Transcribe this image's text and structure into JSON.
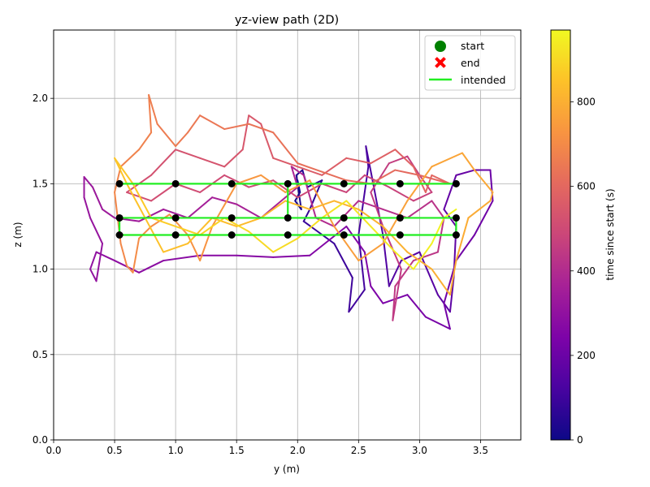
{
  "chart_data": {
    "type": "line",
    "title": "yz-view path (2D)",
    "xlabel": "y (m)",
    "ylabel": "z (m)",
    "xlim": [
      0.0,
      3.83
    ],
    "ylim": [
      0.0,
      2.4
    ],
    "xticks": [
      0.0,
      0.5,
      1.0,
      1.5,
      2.0,
      2.5,
      3.0,
      3.5
    ],
    "yticks": [
      0.0,
      0.5,
      1.0,
      1.5,
      2.0
    ],
    "xtick_labels": [
      "0.0",
      "0.5",
      "1.0",
      "1.5",
      "2.0",
      "2.5",
      "3.0",
      "3.5"
    ],
    "ytick_labels": [
      "0.0",
      "0.5",
      "1.0",
      "1.5",
      "2.0"
    ],
    "grid": true,
    "legend": {
      "placement": "top-right",
      "entries": [
        {
          "label": "start",
          "marker": "circle",
          "color": "#008000"
        },
        {
          "label": "end",
          "marker": "x",
          "color": "#ff0000"
        },
        {
          "label": "intended",
          "marker": "line",
          "color": "#22ee22"
        }
      ]
    },
    "colorbar": {
      "label": "time since start (s)",
      "min": 0,
      "max": 970,
      "ticks": [
        0,
        200,
        400,
        600,
        800
      ],
      "tick_labels": [
        "0",
        "200",
        "400",
        "600",
        "800"
      ],
      "colormap": "plasma"
    },
    "intended_path": {
      "color": "#22ee22",
      "waypoints": [
        {
          "y": 0.54,
          "z": 1.5
        },
        {
          "y": 1.0,
          "z": 1.5
        },
        {
          "y": 1.46,
          "z": 1.5
        },
        {
          "y": 1.92,
          "z": 1.5
        },
        {
          "y": 1.92,
          "z": 1.3
        },
        {
          "y": 1.46,
          "z": 1.3
        },
        {
          "y": 1.0,
          "z": 1.3
        },
        {
          "y": 0.54,
          "z": 1.3
        },
        {
          "y": 0.54,
          "z": 1.2
        },
        {
          "y": 1.0,
          "z": 1.2
        },
        {
          "y": 1.46,
          "z": 1.2
        },
        {
          "y": 1.92,
          "z": 1.2
        },
        {
          "y": 2.38,
          "z": 1.2
        },
        {
          "y": 2.84,
          "z": 1.2
        },
        {
          "y": 3.3,
          "z": 1.2
        },
        {
          "y": 3.3,
          "z": 1.3
        },
        {
          "y": 2.84,
          "z": 1.3
        },
        {
          "y": 2.38,
          "z": 1.3
        },
        {
          "y": 1.92,
          "z": 1.3
        },
        {
          "y": 1.92,
          "z": 1.5
        },
        {
          "y": 2.38,
          "z": 1.5
        },
        {
          "y": 2.84,
          "z": 1.5
        },
        {
          "y": 3.3,
          "z": 1.5
        }
      ]
    },
    "waypoint_markers": {
      "color": "#000000",
      "points": [
        {
          "y": 0.54,
          "z": 1.5
        },
        {
          "y": 1.0,
          "z": 1.5
        },
        {
          "y": 1.46,
          "z": 1.5
        },
        {
          "y": 1.92,
          "z": 1.5
        },
        {
          "y": 2.38,
          "z": 1.5
        },
        {
          "y": 2.84,
          "z": 1.5
        },
        {
          "y": 3.3,
          "z": 1.5
        },
        {
          "y": 0.54,
          "z": 1.3
        },
        {
          "y": 1.0,
          "z": 1.3
        },
        {
          "y": 1.46,
          "z": 1.3
        },
        {
          "y": 1.92,
          "z": 1.3
        },
        {
          "y": 2.38,
          "z": 1.3
        },
        {
          "y": 2.84,
          "z": 1.3
        },
        {
          "y": 3.3,
          "z": 1.3
        },
        {
          "y": 0.54,
          "z": 1.2
        },
        {
          "y": 1.0,
          "z": 1.2
        },
        {
          "y": 1.46,
          "z": 1.2
        },
        {
          "y": 1.92,
          "z": 1.2
        },
        {
          "y": 2.38,
          "z": 1.2
        },
        {
          "y": 2.84,
          "z": 1.2
        },
        {
          "y": 3.3,
          "z": 1.2
        }
      ]
    },
    "actual_path_segments": [
      {
        "t_start": 0,
        "t_end": 90,
        "points": [
          [
            2.0,
            1.52
          ],
          [
            2.02,
            1.45
          ],
          [
            1.98,
            1.4
          ],
          [
            2.03,
            1.35
          ],
          [
            1.99,
            1.55
          ],
          [
            2.04,
            1.58
          ],
          [
            2.08,
            1.48
          ],
          [
            2.2,
            1.52
          ],
          [
            2.1,
            1.35
          ],
          [
            2.05,
            1.28
          ]
        ]
      },
      {
        "t_start": 90,
        "t_end": 180,
        "points": [
          [
            2.05,
            1.28
          ],
          [
            2.3,
            1.15
          ],
          [
            2.45,
            0.95
          ],
          [
            2.42,
            0.75
          ],
          [
            2.55,
            0.88
          ],
          [
            2.5,
            1.2
          ],
          [
            2.58,
            1.6
          ],
          [
            2.56,
            1.72
          ],
          [
            2.62,
            1.5
          ],
          [
            2.7,
            1.2
          ],
          [
            2.75,
            0.9
          ],
          [
            2.85,
            1.05
          ],
          [
            3.0,
            1.1
          ],
          [
            3.15,
            0.85
          ],
          [
            3.25,
            0.75
          ],
          [
            3.28,
            0.95
          ],
          [
            3.3,
            1.25
          ]
        ]
      },
      {
        "t_start": 180,
        "t_end": 260,
        "points": [
          [
            3.3,
            1.25
          ],
          [
            3.2,
            1.35
          ],
          [
            3.3,
            1.55
          ],
          [
            3.45,
            1.58
          ],
          [
            3.58,
            1.58
          ],
          [
            3.6,
            1.4
          ],
          [
            3.45,
            1.2
          ],
          [
            3.3,
            1.05
          ],
          [
            3.2,
            0.8
          ],
          [
            3.25,
            0.65
          ],
          [
            3.05,
            0.72
          ],
          [
            2.9,
            0.85
          ],
          [
            2.7,
            0.8
          ],
          [
            2.6,
            0.9
          ],
          [
            2.55,
            1.1
          ],
          [
            2.4,
            1.25
          ]
        ]
      },
      {
        "t_start": 260,
        "t_end": 340,
        "points": [
          [
            2.4,
            1.25
          ],
          [
            2.1,
            1.08
          ],
          [
            1.8,
            1.07
          ],
          [
            1.5,
            1.08
          ],
          [
            1.2,
            1.08
          ],
          [
            0.9,
            1.05
          ],
          [
            0.7,
            0.98
          ],
          [
            0.5,
            1.05
          ],
          [
            0.35,
            1.1
          ],
          [
            0.3,
            1.0
          ],
          [
            0.35,
            0.93
          ],
          [
            0.4,
            1.15
          ],
          [
            0.3,
            1.3
          ],
          [
            0.25,
            1.42
          ],
          [
            0.25,
            1.54
          ],
          [
            0.32,
            1.48
          ],
          [
            0.4,
            1.35
          ],
          [
            0.5,
            1.3
          ]
        ]
      },
      {
        "t_start": 340,
        "t_end": 430,
        "points": [
          [
            0.5,
            1.3
          ],
          [
            0.7,
            1.28
          ],
          [
            0.9,
            1.35
          ],
          [
            1.1,
            1.3
          ],
          [
            1.3,
            1.42
          ],
          [
            1.5,
            1.38
          ],
          [
            1.7,
            1.3
          ],
          [
            1.9,
            1.42
          ],
          [
            2.0,
            1.48
          ],
          [
            1.95,
            1.6
          ],
          [
            2.05,
            1.55
          ],
          [
            2.15,
            1.3
          ],
          [
            2.3,
            1.25
          ],
          [
            2.5,
            1.4
          ],
          [
            2.7,
            1.35
          ],
          [
            2.9,
            1.3
          ],
          [
            3.1,
            1.4
          ],
          [
            3.2,
            1.3
          ]
        ]
      },
      {
        "t_start": 430,
        "t_end": 520,
        "points": [
          [
            3.2,
            1.3
          ],
          [
            3.15,
            1.1
          ],
          [
            2.95,
            1.05
          ],
          [
            2.8,
            0.9
          ],
          [
            2.78,
            0.7
          ],
          [
            2.85,
            1.0
          ],
          [
            2.7,
            1.25
          ],
          [
            2.6,
            1.45
          ],
          [
            2.75,
            1.62
          ],
          [
            2.9,
            1.66
          ],
          [
            3.0,
            1.55
          ],
          [
            3.1,
            1.45
          ],
          [
            2.95,
            1.4
          ],
          [
            2.75,
            1.48
          ],
          [
            2.55,
            1.55
          ],
          [
            2.4,
            1.45
          ],
          [
            2.2,
            1.5
          ],
          [
            2.0,
            1.42
          ],
          [
            1.8,
            1.52
          ],
          [
            1.6,
            1.48
          ],
          [
            1.4,
            1.55
          ],
          [
            1.2,
            1.45
          ],
          [
            1.0,
            1.5
          ],
          [
            0.8,
            1.4
          ],
          [
            0.6,
            1.45
          ]
        ]
      },
      {
        "t_start": 520,
        "t_end": 600,
        "points": [
          [
            0.6,
            1.45
          ],
          [
            0.8,
            1.55
          ],
          [
            1.0,
            1.7
          ],
          [
            1.2,
            1.65
          ],
          [
            1.4,
            1.6
          ],
          [
            1.55,
            1.7
          ],
          [
            1.6,
            1.9
          ],
          [
            1.7,
            1.85
          ],
          [
            1.8,
            1.65
          ],
          [
            2.0,
            1.6
          ],
          [
            2.2,
            1.55
          ],
          [
            2.4,
            1.65
          ],
          [
            2.6,
            1.62
          ],
          [
            2.8,
            1.7
          ],
          [
            2.95,
            1.6
          ],
          [
            3.05,
            1.45
          ],
          [
            3.1,
            1.55
          ],
          [
            3.25,
            1.5
          ]
        ]
      },
      {
        "t_start": 600,
        "t_end": 690,
        "points": [
          [
            3.25,
            1.5
          ],
          [
            3.0,
            1.55
          ],
          [
            2.8,
            1.58
          ],
          [
            2.6,
            1.5
          ],
          [
            2.4,
            1.52
          ],
          [
            2.2,
            1.57
          ],
          [
            2.0,
            1.62
          ],
          [
            1.8,
            1.8
          ],
          [
            1.6,
            1.85
          ],
          [
            1.4,
            1.82
          ],
          [
            1.2,
            1.9
          ],
          [
            1.1,
            1.8
          ],
          [
            1.0,
            1.72
          ],
          [
            0.85,
            1.85
          ],
          [
            0.78,
            2.02
          ],
          [
            0.8,
            1.8
          ],
          [
            0.7,
            1.7
          ],
          [
            0.55,
            1.6
          ],
          [
            0.5,
            1.45
          ]
        ]
      },
      {
        "t_start": 690,
        "t_end": 780,
        "points": [
          [
            0.5,
            1.45
          ],
          [
            0.55,
            1.15
          ],
          [
            0.6,
            1.02
          ],
          [
            0.65,
            0.98
          ],
          [
            0.7,
            1.18
          ],
          [
            0.8,
            1.25
          ],
          [
            0.95,
            1.32
          ],
          [
            1.1,
            1.2
          ],
          [
            1.2,
            1.05
          ],
          [
            1.3,
            1.25
          ],
          [
            1.5,
            1.5
          ],
          [
            1.7,
            1.55
          ],
          [
            1.9,
            1.45
          ],
          [
            2.1,
            1.52
          ],
          [
            2.3,
            1.25
          ],
          [
            2.5,
            1.05
          ],
          [
            2.7,
            1.15
          ],
          [
            2.9,
            1.4
          ],
          [
            3.1,
            1.6
          ],
          [
            3.35,
            1.68
          ],
          [
            3.45,
            1.58
          ]
        ]
      },
      {
        "t_start": 780,
        "t_end": 860,
        "points": [
          [
            3.45,
            1.58
          ],
          [
            3.6,
            1.45
          ],
          [
            3.58,
            1.4
          ],
          [
            3.4,
            1.3
          ],
          [
            3.3,
            1.05
          ],
          [
            3.25,
            0.85
          ],
          [
            3.1,
            1.0
          ],
          [
            2.9,
            1.1
          ],
          [
            2.7,
            1.25
          ],
          [
            2.5,
            1.35
          ],
          [
            2.3,
            1.4
          ],
          [
            2.1,
            1.35
          ],
          [
            1.9,
            1.4
          ],
          [
            1.7,
            1.3
          ],
          [
            1.5,
            1.25
          ],
          [
            1.3,
            1.3
          ],
          [
            1.1,
            1.15
          ],
          [
            0.9,
            1.1
          ],
          [
            0.75,
            1.3
          ],
          [
            0.6,
            1.5
          ],
          [
            0.5,
            1.65
          ]
        ]
      },
      {
        "t_start": 860,
        "t_end": 970,
        "points": [
          [
            0.5,
            1.65
          ],
          [
            0.65,
            1.5
          ],
          [
            0.8,
            1.3
          ],
          [
            1.0,
            1.25
          ],
          [
            1.2,
            1.2
          ],
          [
            1.4,
            1.3
          ],
          [
            1.6,
            1.22
          ],
          [
            1.8,
            1.1
          ],
          [
            2.0,
            1.18
          ],
          [
            2.2,
            1.3
          ],
          [
            2.4,
            1.4
          ],
          [
            2.6,
            1.25
          ],
          [
            2.8,
            1.1
          ],
          [
            2.95,
            1.0
          ],
          [
            3.1,
            1.15
          ],
          [
            3.2,
            1.3
          ],
          [
            3.3,
            1.35
          ]
        ]
      }
    ]
  }
}
